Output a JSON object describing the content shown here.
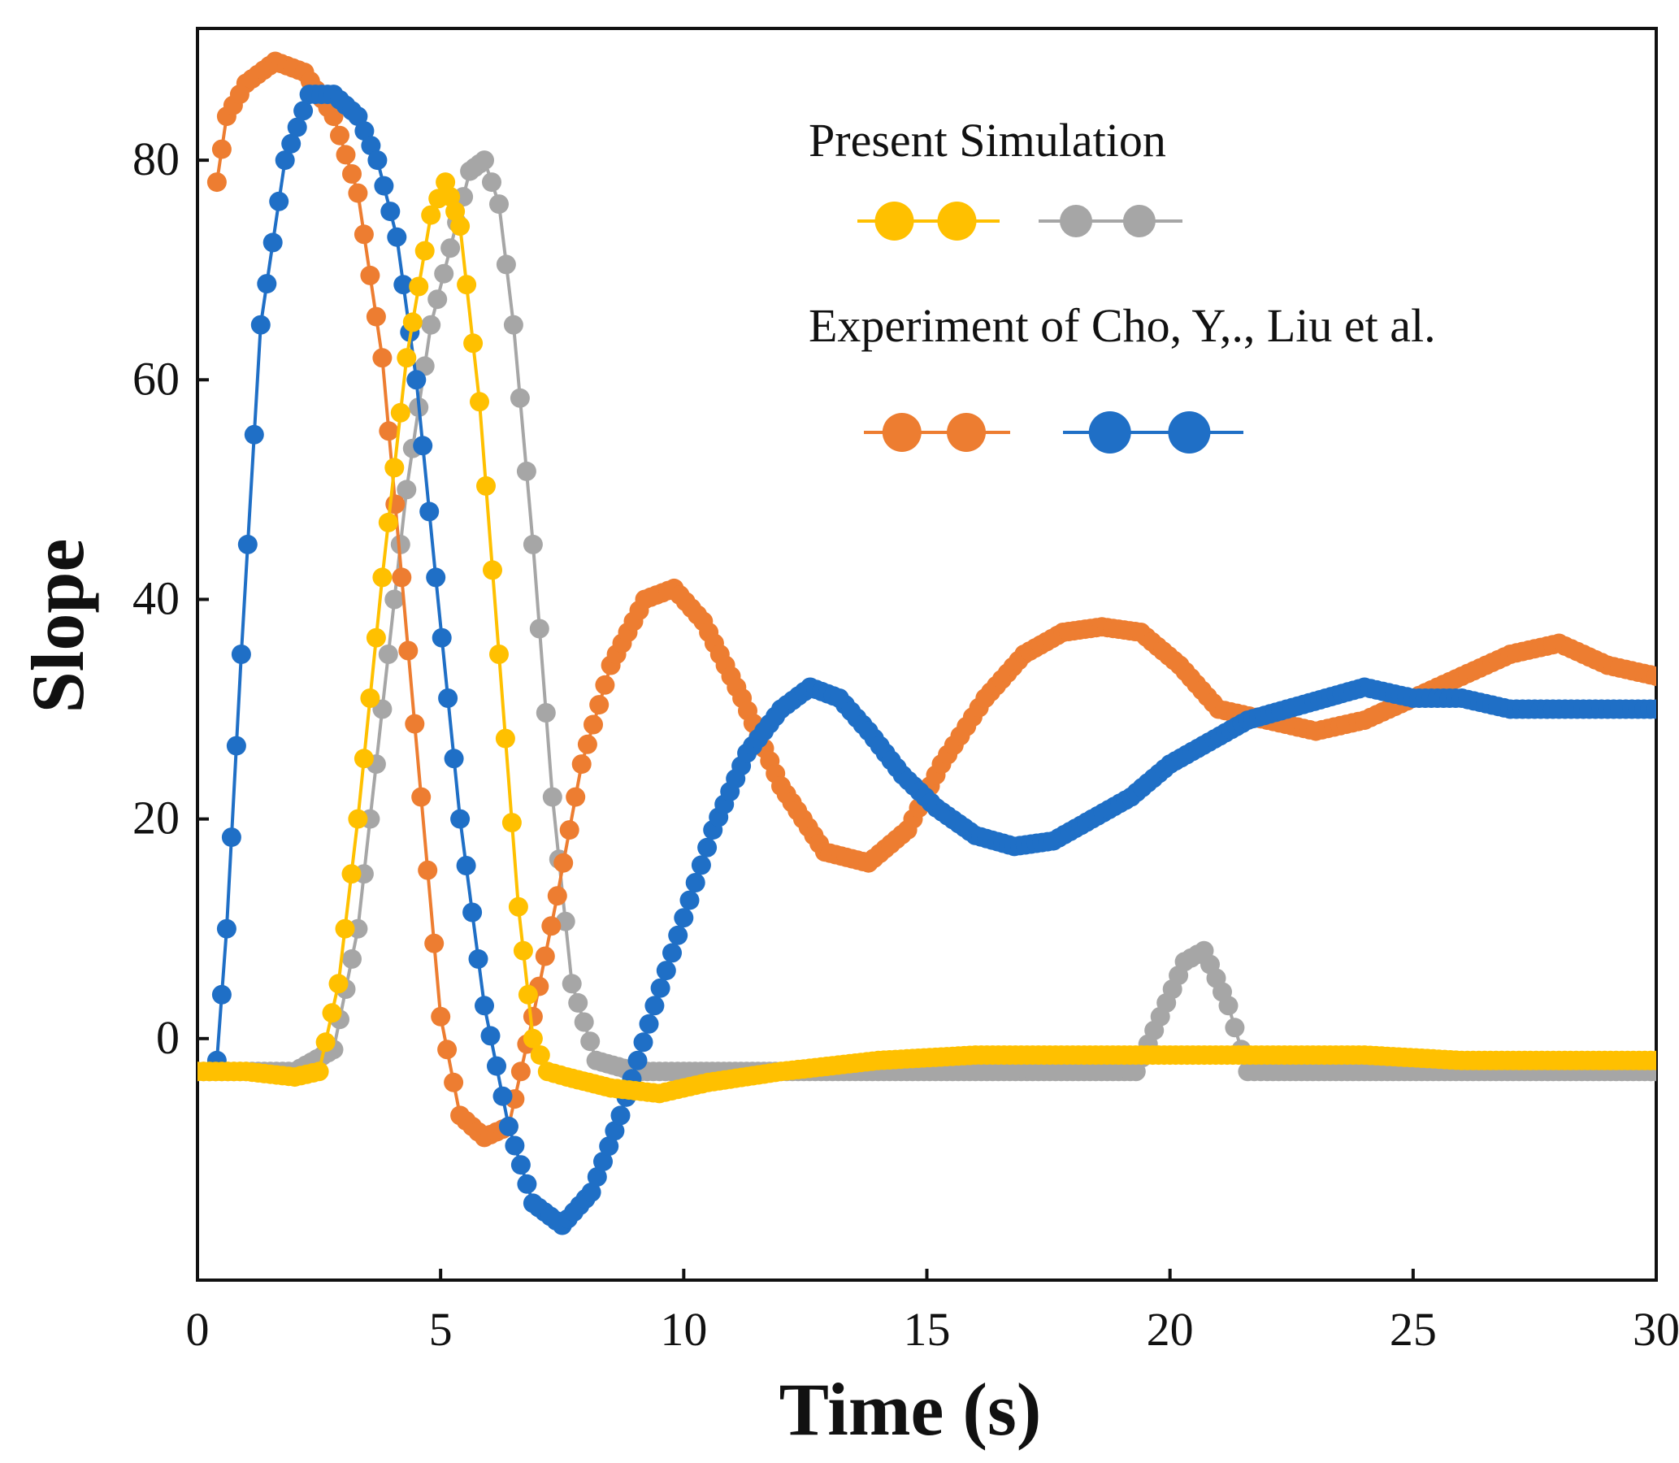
{
  "chart_data": {
    "type": "line",
    "title": "",
    "xlabel": "Time (s)",
    "ylabel": "Slope",
    "xlim": [
      0,
      30
    ],
    "ylim": [
      -22,
      92
    ],
    "xticks": [
      "0",
      "5",
      "10",
      "15",
      "20",
      "25",
      "30"
    ],
    "yticks": [
      "0",
      "20",
      "40",
      "60",
      "80"
    ],
    "legend": {
      "placement": "top-right",
      "group1_title": "Present Simulation",
      "group2_title": "Experiment of Cho, Y,., Liu et al."
    },
    "series": [
      {
        "name": "Present Simulation (yellow)",
        "color": "#FFC000",
        "x": [
          0,
          1,
          2,
          2.5,
          2.9,
          3.3,
          3.8,
          4.3,
          4.8,
          5.1,
          5.4,
          5.8,
          6.2,
          6.6,
          6.9,
          7.2,
          7.6,
          8.5,
          9.5,
          10.5,
          12,
          14,
          16,
          18,
          20,
          22,
          24,
          26,
          28,
          30
        ],
        "y": [
          -3,
          -3,
          -3.5,
          -3,
          5,
          20,
          42,
          62,
          75,
          78,
          74,
          58,
          35,
          12,
          0,
          -3,
          -3.5,
          -4.5,
          -5,
          -4,
          -3,
          -2,
          -1.5,
          -1.5,
          -1.5,
          -1.5,
          -1.5,
          -2,
          -2,
          -2
        ]
      },
      {
        "name": "Present Simulation (gray)",
        "color": "#A6A6A6",
        "x": [
          0,
          1,
          2,
          2.8,
          3.3,
          3.8,
          4.3,
          4.8,
          5.2,
          5.6,
          5.9,
          6.2,
          6.5,
          6.9,
          7.3,
          7.7,
          8.2,
          9,
          10,
          12,
          14,
          16,
          18,
          19.3,
          19.8,
          20.3,
          20.7,
          21.2,
          21.6,
          22,
          24,
          26,
          28,
          30
        ],
        "y": [
          -3,
          -3,
          -3,
          -1,
          10,
          30,
          50,
          65,
          72,
          79,
          80,
          76,
          65,
          45,
          22,
          5,
          -2,
          -3,
          -3,
          -3,
          -3,
          -3,
          -3,
          -3,
          2,
          7,
          8,
          3,
          -3,
          -3,
          -3,
          -3,
          -3,
          -3
        ]
      },
      {
        "name": "Experiment of Cho, Y,., Liu et al. (orange)",
        "color": "#ED7D31",
        "x": [
          0.4,
          0.6,
          1,
          1.6,
          2.2,
          2.8,
          3.3,
          3.8,
          4.2,
          4.6,
          5,
          5.4,
          5.9,
          6.4,
          6.9,
          7.4,
          7.9,
          8.5,
          9.2,
          9.8,
          10.4,
          11.2,
          12,
          12.9,
          13.8,
          14.6,
          15.3,
          16.2,
          17,
          17.8,
          18.6,
          19.4,
          20.2,
          21,
          22,
          23,
          24,
          25,
          26,
          27,
          28,
          29,
          30
        ],
        "y": [
          78,
          84,
          87,
          89,
          88,
          84,
          77,
          62,
          42,
          22,
          2,
          -7,
          -9,
          -8,
          2,
          13,
          25,
          34,
          40,
          41,
          38,
          31,
          23,
          17,
          16,
          19,
          25,
          31,
          35,
          37,
          37.5,
          37,
          34,
          30,
          29,
          28,
          29,
          31,
          33,
          35,
          36,
          34,
          33
        ]
      },
      {
        "name": "Experiment of Cho, Y,., Liu et al. (blue)",
        "color": "#1F6FC6",
        "x": [
          0.4,
          0.6,
          0.9,
          1.3,
          1.8,
          2.3,
          2.8,
          3.3,
          3.7,
          4.1,
          4.5,
          4.9,
          5.4,
          5.9,
          6.4,
          6.9,
          7.5,
          8.1,
          8.7,
          9.4,
          10,
          10.6,
          11.3,
          12,
          12.6,
          13.2,
          13.8,
          14.5,
          15.2,
          16,
          16.8,
          17.6,
          18.4,
          19.2,
          20,
          20.8,
          21.6,
          22.4,
          23.2,
          24,
          25,
          26,
          27,
          28,
          29,
          30
        ],
        "y": [
          -2,
          10,
          35,
          65,
          80,
          86,
          86,
          84,
          80,
          73,
          60,
          42,
          20,
          3,
          -8,
          -15,
          -17,
          -14,
          -7,
          3,
          11,
          19,
          26,
          30,
          32,
          31,
          28,
          24,
          21,
          18.5,
          17.5,
          18,
          20,
          22,
          25,
          27,
          29,
          30,
          31,
          32,
          31,
          31,
          30,
          30,
          30,
          30
        ]
      }
    ]
  }
}
